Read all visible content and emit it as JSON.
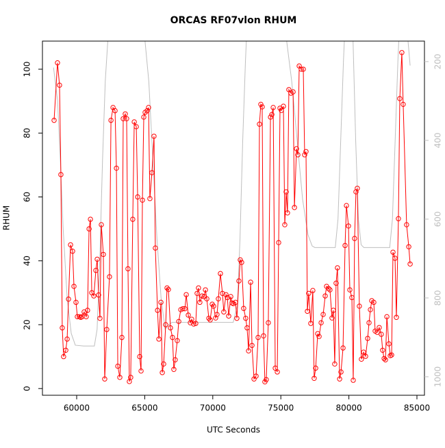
{
  "chart_data": {
    "type": "line",
    "title": "ORCAS RF07vlon RHUM",
    "xlabel": "UTC Seconds",
    "ylabel": "RHUM",
    "xlim": [
      57485,
      85553
    ],
    "ylim": [
      -2.1,
      108.8
    ],
    "y2lim": [
      1047,
      148
    ],
    "xticks": [
      60000,
      65000,
      70000,
      75000,
      80000,
      85000
    ],
    "yticks": [
      0,
      20,
      40,
      60,
      80,
      100
    ],
    "y2ticks": [
      200,
      400,
      600,
      800,
      1000
    ],
    "y2color": "#bebebe",
    "series": [
      {
        "color": "#bebebe",
        "axis": "y2",
        "marker": "none",
        "x": [
          58300,
          58600,
          58800,
          59000,
          59300,
          59600,
          59900,
          60500,
          61300,
          61500,
          61700,
          61900,
          62100,
          62300,
          62600,
          63500,
          64500,
          65000,
          65300,
          65600,
          65900,
          66200,
          66500,
          66700,
          67000,
          71500,
          71800,
          72000,
          72200,
          72400,
          72500,
          73500,
          74500,
          75400,
          75800,
          76200,
          76600,
          77000,
          77300,
          77500,
          79000,
          79200,
          79400,
          79600,
          79700,
          80000,
          80300,
          80500,
          80700,
          80900,
          81100,
          83000,
          83200,
          83400,
          83600,
          83700,
          84000,
          84300,
          84500
        ],
        "values": [
          215,
          300,
          450,
          620,
          800,
          890,
          920,
          922,
          922,
          880,
          700,
          450,
          250,
          140,
          100,
          80,
          90,
          140,
          250,
          450,
          650,
          800,
          880,
          870,
          862,
          862,
          820,
          650,
          400,
          200,
          120,
          80,
          90,
          140,
          250,
          400,
          550,
          640,
          668,
          672,
          672,
          600,
          400,
          200,
          120,
          90,
          140,
          400,
          600,
          665,
          672,
          672,
          600,
          400,
          200,
          120,
          90,
          130,
          210
        ]
      },
      {
        "color": "#ff0000",
        "axis": "y",
        "marker": "circle",
        "x": [
          58340,
          58590,
          58740,
          58840,
          58940,
          59040,
          59200,
          59300,
          59400,
          59550,
          59700,
          59800,
          59950,
          60050,
          60200,
          60300,
          60400,
          60550,
          60700,
          60800,
          60910,
          61010,
          61110,
          61260,
          61410,
          61510,
          61610,
          61710,
          61810,
          61960,
          62060,
          62210,
          62410,
          62520,
          62670,
          62820,
          62920,
          63020,
          63170,
          63320,
          63420,
          63570,
          63670,
          63770,
          63870,
          63970,
          64120,
          64230,
          64380,
          64480,
          64630,
          64730,
          64830,
          64930,
          65030,
          65180,
          65280,
          65380,
          65530,
          65680,
          65780,
          65940,
          66040,
          66190,
          66290,
          66390,
          66540,
          66640,
          66740,
          66890,
          67040,
          67140,
          67240,
          67390,
          67500,
          67650,
          67800,
          67950,
          68050,
          68200,
          68350,
          68450,
          68600,
          68750,
          68850,
          68950,
          69050,
          69210,
          69360,
          69460,
          69560,
          69710,
          69810,
          69960,
          70060,
          70210,
          70310,
          70410,
          70560,
          70710,
          70810,
          70970,
          71070,
          71170,
          71320,
          71420,
          71520,
          71670,
          71770,
          71920,
          72020,
          72120,
          72270,
          72420,
          72520,
          72630,
          72780,
          72880,
          73030,
          73180,
          73330,
          73430,
          73530,
          73630,
          73730,
          73830,
          73930,
          74080,
          74240,
          74340,
          74440,
          74590,
          74740,
          74840,
          74940,
          75040,
          75190,
          75290,
          75390,
          75490,
          75590,
          75740,
          75900,
          76000,
          76150,
          76250,
          76350,
          76500,
          76650,
          76750,
          76850,
          76950,
          77050,
          77200,
          77350,
          77450,
          77560,
          77710,
          77810,
          77960,
          78110,
          78260,
          78360,
          78510,
          78610,
          78760,
          78860,
          78960,
          79060,
          79160,
          79320,
          79420,
          79570,
          79720,
          79820,
          79970,
          80070,
          80220,
          80320,
          80420,
          80520,
          80620,
          80770,
          80920,
          81080,
          81230,
          81380,
          81480,
          81580,
          81680,
          81830,
          81930,
          82080,
          82230,
          82380,
          82480,
          82590,
          82690,
          82790,
          82940,
          83040,
          83140,
          83240,
          83390,
          83490,
          83640,
          83740,
          83890,
          83990,
          84240,
          84400,
          84500
        ],
        "values": [
          84,
          102,
          95,
          67,
          19,
          10,
          12,
          15.5,
          28,
          45,
          43,
          32,
          27,
          22.5,
          22.5,
          22.3,
          22.5,
          24,
          22.5,
          24.5,
          50,
          53,
          30,
          29,
          37,
          40.5,
          29.3,
          22,
          51.3,
          42,
          3,
          18.5,
          35,
          84,
          88,
          87,
          69,
          7,
          3.5,
          16,
          84.5,
          86,
          84.5,
          37.5,
          2.2,
          3.5,
          53,
          83.5,
          82,
          60,
          10,
          5.5,
          59,
          85,
          86.5,
          87,
          88,
          59.5,
          67.6,
          79,
          44,
          24.5,
          15.5,
          27,
          5,
          7.7,
          20,
          31.5,
          31,
          19,
          16,
          6,
          9,
          15,
          21,
          24.7,
          25,
          25,
          29.4,
          23,
          20.6,
          21.7,
          20.2,
          20.4,
          29.8,
          31.5,
          27,
          29,
          28.8,
          30.9,
          28.1,
          22,
          21.5,
          26.4,
          25.8,
          22.1,
          23.2,
          28.1,
          36,
          29.8,
          24,
          29.4,
          28.5,
          22.7,
          28.8,
          26.8,
          26.6,
          27,
          22,
          33.7,
          40.3,
          39.5,
          25.1,
          22,
          19,
          11.8,
          33.3,
          13.5,
          3,
          3.9,
          16,
          82.8,
          89,
          88.2,
          16.5,
          2.1,
          2.8,
          20.6,
          85,
          85.8,
          88,
          6.4,
          5.2,
          45.7,
          87.8,
          87.1,
          88.4,
          51.3,
          61.6,
          55,
          93.6,
          92.5,
          92.9,
          56.7,
          75.1,
          73.2,
          101,
          100,
          100,
          73.2,
          74.2,
          24.2,
          29.8,
          20.4,
          30.7,
          3.2,
          6.4,
          17.2,
          16.3,
          20.6,
          23.2,
          29,
          32,
          31.3,
          30.9,
          22.1,
          24.5,
          7.7,
          33,
          37.8,
          3,
          5.2,
          12.7,
          44.8,
          57.3,
          50.9,
          30.9,
          28.5,
          2.6,
          47,
          61.6,
          62.7,
          25.8,
          9.2,
          11.4,
          10.1,
          15.7,
          20.6,
          24.7,
          27.5,
          27,
          18,
          17.6,
          19.1,
          17,
          12,
          9.4,
          9,
          22.5,
          14,
          10.3,
          10.5,
          42.7,
          40.8,
          22.3,
          53.2,
          90.8,
          105.2,
          89,
          51.3,
          44.4,
          39
        ]
      }
    ]
  }
}
